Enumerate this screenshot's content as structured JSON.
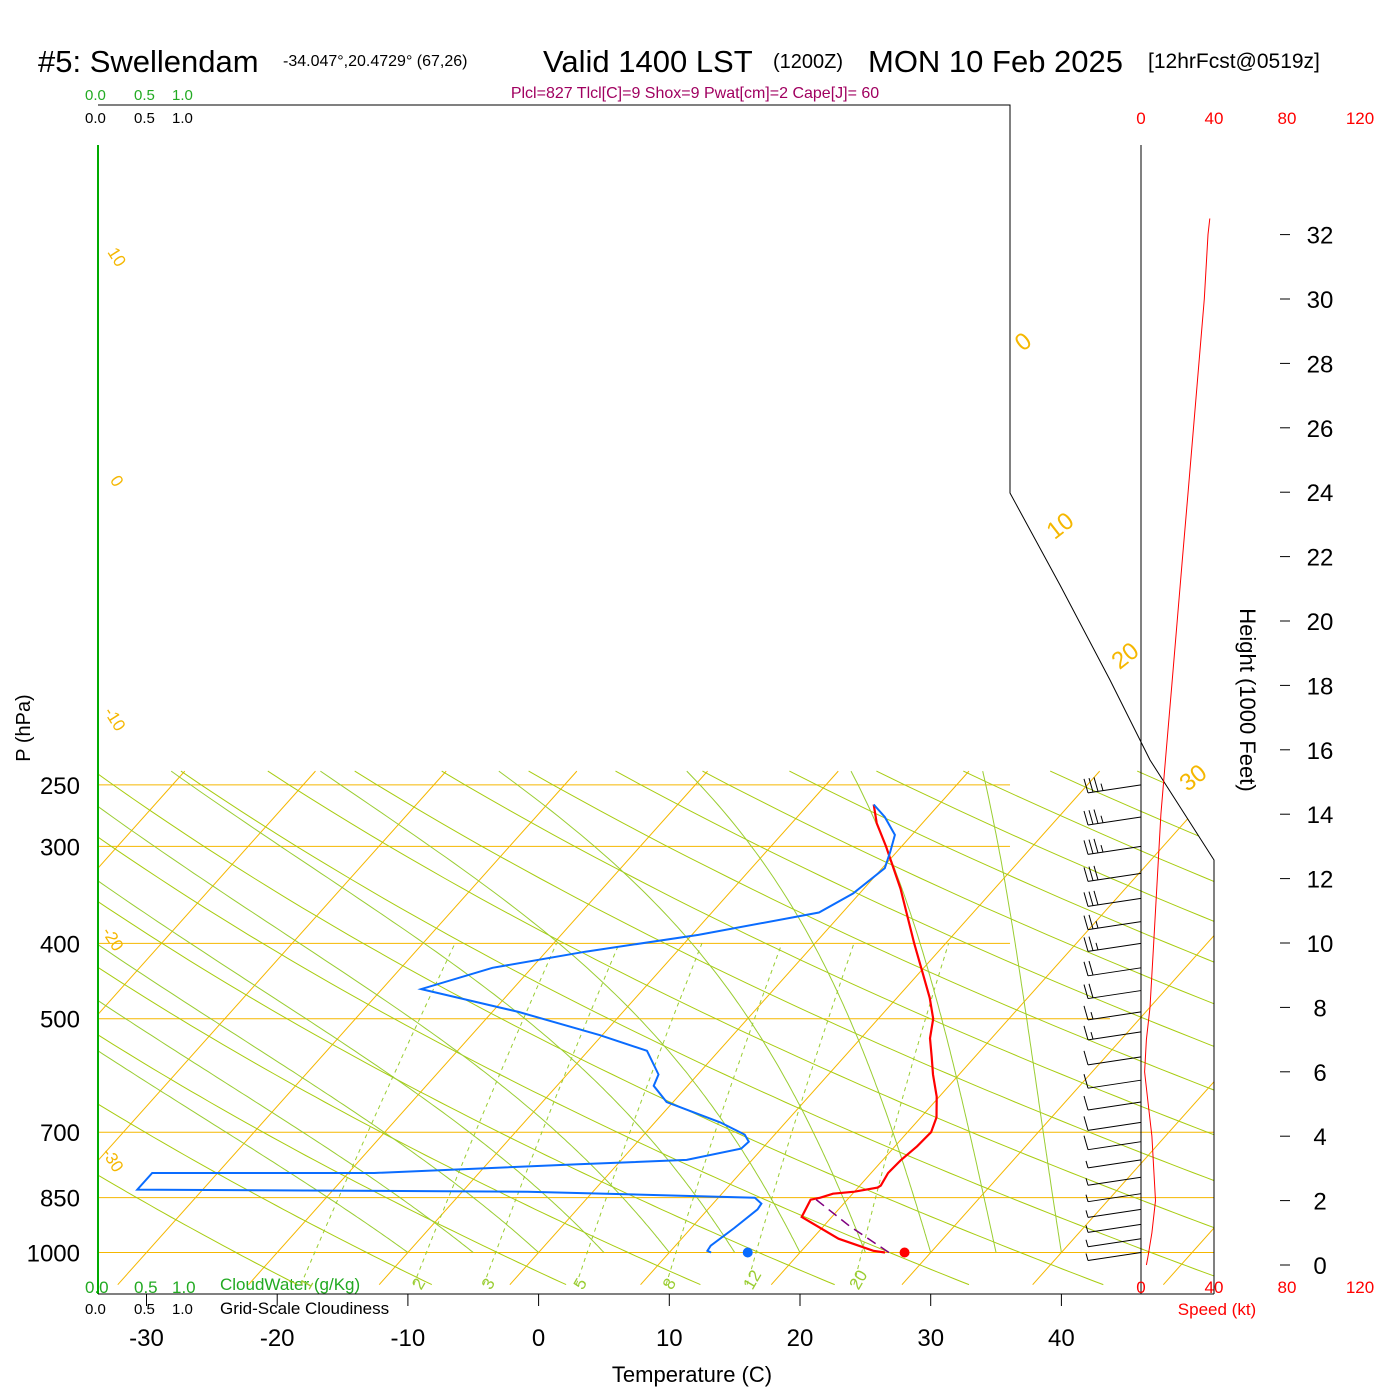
{
  "header": {
    "station": "#5: Swellendam",
    "coords": "-34.047°,20.4729° (67,26)",
    "valid": "Valid 1400 LST",
    "zulu": "(1200Z)",
    "date": "MON 10 Feb 2025",
    "fcst": "[12hrFcst@0519z]",
    "indices": "Plcl=827 Tlcl[C]=9 Shox=9 Pwat[cm]=2 Cape[J]= 60"
  },
  "cloud_scale": {
    "top_green": [
      "0.0",
      "0.5",
      "1.0"
    ],
    "top_black": [
      "0.0",
      "0.5",
      "1.0"
    ],
    "bottom_green": [
      "0.0",
      "0.5",
      "1.0"
    ],
    "bottom_black": [
      "0.0",
      "0.5",
      "1.0"
    ],
    "cloudwater_label": "CloudWater (g/Kg)",
    "cloudiness_label": "Grid-Scale Cloudiness"
  },
  "colors": {
    "isotherm": "#f5b700",
    "dry_adiabat": "#a8cc10",
    "mixing_ratio": "#9acd32",
    "temperature": "#ff0000",
    "dewpoint": "#0a6cff",
    "parcel": "#800080",
    "speed": "#ff0000",
    "cloud_axis": "#00aa00"
  },
  "chart_data": {
    "type": "skew-t",
    "xlabel": "Temperature (C)",
    "ylabel": "P (hPa)",
    "right_label": "Height (1000 Feet)",
    "speed_label": "Speed (kt)",
    "pressure_ticks": [
      250,
      300,
      400,
      500,
      700,
      850,
      1000
    ],
    "temp_ticks": [
      -30,
      -20,
      -10,
      0,
      10,
      20,
      30,
      40
    ],
    "xlim": [
      -34,
      36
    ],
    "ylim": [
      1100,
      250
    ],
    "height_ticks": [
      0,
      2,
      4,
      6,
      8,
      10,
      12,
      14,
      16,
      18,
      20,
      22,
      24,
      26,
      28,
      30,
      32
    ],
    "speed_ticks": [
      "0",
      "40",
      "80",
      "120"
    ],
    "isotherm_labels": [
      "10",
      "0",
      "-10",
      "-20",
      "-30"
    ],
    "isotherm_labels_right": [
      "0",
      "10",
      "20",
      "30"
    ],
    "mixing_ratio_labels": [
      "1",
      "2",
      "3",
      "5",
      "8",
      "12",
      "20"
    ],
    "series": [
      {
        "name": "Temperature",
        "points": [
          [
            26.5,
            1000
          ],
          [
            25.5,
            995
          ],
          [
            22,
            960
          ],
          [
            17.7,
            900
          ],
          [
            17.2,
            855
          ],
          [
            17.8,
            850
          ],
          [
            18.5,
            840
          ],
          [
            20,
            835
          ],
          [
            21.5,
            825
          ],
          [
            21.6,
            820
          ],
          [
            21.3,
            790
          ],
          [
            21.4,
            760
          ],
          [
            21.7,
            730
          ],
          [
            21.8,
            700
          ],
          [
            21.2,
            670
          ],
          [
            19.8,
            630
          ],
          [
            18,
            590
          ],
          [
            16.7,
            560
          ],
          [
            15.3,
            530
          ],
          [
            14.2,
            500
          ],
          [
            12.5,
            470
          ],
          [
            9.8,
            430
          ],
          [
            7.6,
            400
          ],
          [
            2.8,
            340
          ],
          [
            -1.2,
            300
          ],
          [
            -3.5,
            280
          ],
          [
            -5.0,
            265
          ]
        ]
      },
      {
        "name": "Dewpoint",
        "points": [
          [
            13.2,
            1000
          ],
          [
            12.8,
            995
          ],
          [
            12.7,
            980
          ],
          [
            13.3,
            930
          ],
          [
            13.8,
            880
          ],
          [
            13.7,
            865
          ],
          [
            12.8,
            850
          ],
          [
            7,
            845
          ],
          [
            -5,
            835
          ],
          [
            -35,
            830
          ],
          [
            -35,
            790
          ],
          [
            -18,
            790
          ],
          [
            -3,
            770
          ],
          [
            5,
            760
          ],
          [
            8.4,
            735
          ],
          [
            8.5,
            720
          ],
          [
            7.7,
            705
          ],
          [
            5,
            680
          ],
          [
            -0.5,
            640
          ],
          [
            -2.6,
            610
          ],
          [
            -3.0,
            590
          ],
          [
            -5.5,
            550
          ],
          [
            -10.2,
            525
          ],
          [
            -18,
            490
          ],
          [
            -27,
            458
          ],
          [
            -23,
            430
          ],
          [
            -17,
            410
          ],
          [
            -9.5,
            390
          ],
          [
            -1.8,
            365
          ],
          [
            -0.5,
            345
          ],
          [
            0.2,
            320
          ],
          [
            -0.5,
            305
          ],
          [
            -1.3,
            290
          ],
          [
            -3.3,
            275
          ],
          [
            -5.0,
            265
          ]
        ]
      },
      {
        "name": "Parcel",
        "points": [
          [
            26.8,
            1000
          ],
          [
            22,
            925
          ],
          [
            17.3,
            850
          ]
        ]
      }
    ],
    "surface_markers": {
      "temperature": 28,
      "dewpoint": 16
    },
    "wind_speed_profile": [
      [
        0,
        3
      ],
      [
        0.3,
        4
      ],
      [
        1,
        6
      ],
      [
        2,
        8
      ],
      [
        3,
        7
      ],
      [
        4,
        6
      ],
      [
        5,
        4
      ],
      [
        6,
        2
      ],
      [
        7,
        3
      ],
      [
        8,
        5
      ],
      [
        10,
        7
      ],
      [
        12,
        9
      ],
      [
        14,
        11
      ],
      [
        16,
        14
      ],
      [
        18,
        17
      ],
      [
        20,
        20
      ],
      [
        22,
        23
      ],
      [
        24,
        26
      ],
      [
        26,
        29
      ],
      [
        28,
        32
      ],
      [
        30,
        35
      ],
      [
        32,
        37
      ],
      [
        32.5,
        38
      ]
    ],
    "wind_barbs": [
      {
        "p": 250,
        "kt": 35
      },
      {
        "p": 275,
        "kt": 35
      },
      {
        "p": 300,
        "kt": 35
      },
      {
        "p": 325,
        "kt": 30
      },
      {
        "p": 350,
        "kt": 30
      },
      {
        "p": 375,
        "kt": 25
      },
      {
        "p": 400,
        "kt": 25
      },
      {
        "p": 430,
        "kt": 20
      },
      {
        "p": 460,
        "kt": 20
      },
      {
        "p": 490,
        "kt": 15
      },
      {
        "p": 520,
        "kt": 15
      },
      {
        "p": 560,
        "kt": 10
      },
      {
        "p": 600,
        "kt": 10
      },
      {
        "p": 640,
        "kt": 10
      },
      {
        "p": 680,
        "kt": 10
      },
      {
        "p": 720,
        "kt": 10
      },
      {
        "p": 760,
        "kt": 5
      },
      {
        "p": 800,
        "kt": 5
      },
      {
        "p": 840,
        "kt": 5
      },
      {
        "p": 880,
        "kt": 5
      },
      {
        "p": 920,
        "kt": 5
      },
      {
        "p": 960,
        "kt": 5
      },
      {
        "p": 1000,
        "kt": 5
      }
    ]
  }
}
